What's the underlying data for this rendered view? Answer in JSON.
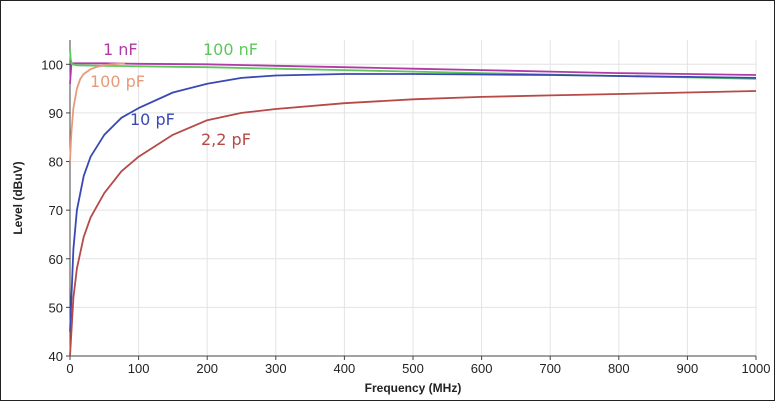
{
  "chart_data": {
    "type": "line",
    "title": "",
    "xlabel": "Frequency (MHz)",
    "ylabel": "Level (dBuV)",
    "xlim": [
      0,
      1000
    ],
    "ylim": [
      40,
      105
    ],
    "x_ticks": [
      0,
      100,
      200,
      300,
      400,
      500,
      600,
      700,
      800,
      900,
      1000
    ],
    "y_ticks": [
      40,
      50,
      60,
      70,
      80,
      90,
      100
    ],
    "grid": true,
    "series": [
      {
        "name": "1 nF",
        "color": "#b03aa8",
        "x": [
          0,
          2,
          5,
          20,
          50,
          100,
          200,
          300,
          400,
          500,
          600,
          700,
          800,
          900,
          1000
        ],
        "values": [
          96,
          100,
          100.2,
          100.2,
          100.2,
          100.1,
          100,
          99.7,
          99.4,
          99.1,
          98.8,
          98.5,
          98.2,
          98,
          97.8
        ]
      },
      {
        "name": "100 nF",
        "color": "#5cc85c",
        "x": [
          0,
          1,
          3,
          10,
          50,
          100,
          200,
          300,
          400,
          500,
          600,
          700,
          800,
          900,
          1000
        ],
        "values": [
          103,
          101,
          100,
          99.8,
          99.7,
          99.6,
          99.4,
          99.1,
          98.8,
          98.5,
          98.2,
          97.9,
          97.6,
          97.3,
          97
        ]
      },
      {
        "name": "100 pF",
        "color": "#e79a7a",
        "x": [
          0,
          2,
          5,
          10,
          15,
          20,
          30,
          40,
          50,
          60,
          80
        ],
        "values": [
          80,
          86,
          91,
          95,
          97,
          98,
          99,
          99.5,
          99.8,
          100,
          100.2
        ]
      },
      {
        "name": "10 pF",
        "color": "#3a48b4",
        "x": [
          0,
          5,
          10,
          20,
          30,
          50,
          75,
          100,
          150,
          200,
          250,
          300,
          400,
          500,
          600,
          700,
          800,
          900,
          1000
        ],
        "values": [
          45,
          62,
          70,
          77,
          81,
          85.5,
          89,
          91,
          94.2,
          96,
          97.2,
          97.7,
          98,
          98,
          97.9,
          97.8,
          97.6,
          97.4,
          97.2
        ]
      },
      {
        "name": "2,2 pF",
        "color": "#b54a46",
        "x": [
          0,
          5,
          10,
          20,
          30,
          50,
          75,
          100,
          150,
          200,
          250,
          300,
          400,
          500,
          600,
          700,
          800,
          900,
          1000
        ],
        "values": [
          40,
          52,
          58,
          64.5,
          68.5,
          73.5,
          78,
          81,
          85.5,
          88.5,
          90,
          90.8,
          92,
          92.8,
          93.3,
          93.6,
          93.9,
          94.2,
          94.5
        ]
      }
    ]
  }
}
